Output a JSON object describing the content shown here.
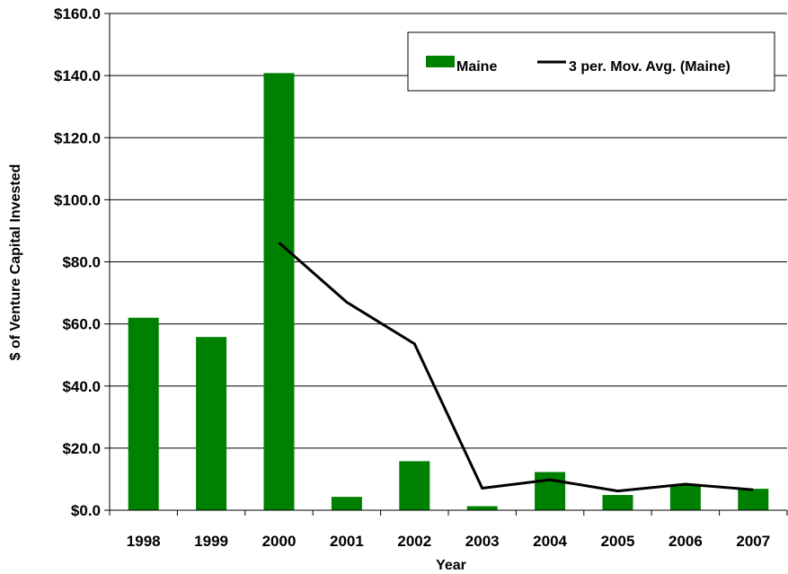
{
  "chart_data": {
    "type": "bar",
    "title": "",
    "xlabel": "Year",
    "ylabel": "$ of Venture Capital Invested",
    "categories": [
      "1998",
      "1999",
      "2000",
      "2001",
      "2002",
      "2003",
      "2004",
      "2005",
      "2006",
      "2007"
    ],
    "series": [
      {
        "name": "Maine",
        "type": "bar",
        "color": "#008000",
        "values": [
          62.0,
          55.8,
          140.8,
          4.3,
          15.8,
          1.3,
          12.3,
          4.9,
          8.0,
          6.9
        ]
      },
      {
        "name": "3 per. Mov. Avg. (Maine)",
        "type": "line",
        "color": "#000000",
        "values": [
          null,
          null,
          86.2,
          67.0,
          53.6,
          7.1,
          9.8,
          6.2,
          8.4,
          6.6
        ]
      }
    ],
    "ylim": [
      0,
      160
    ],
    "yticks": [
      0,
      20,
      40,
      60,
      80,
      100,
      120,
      140,
      160
    ],
    "ytick_labels": [
      "$0.0",
      "$20.0",
      "$40.0",
      "$60.0",
      "$80.0",
      "$100.0",
      "$120.0",
      "$140.0",
      "$160.0"
    ],
    "grid": true,
    "legend_position": "top-right"
  }
}
